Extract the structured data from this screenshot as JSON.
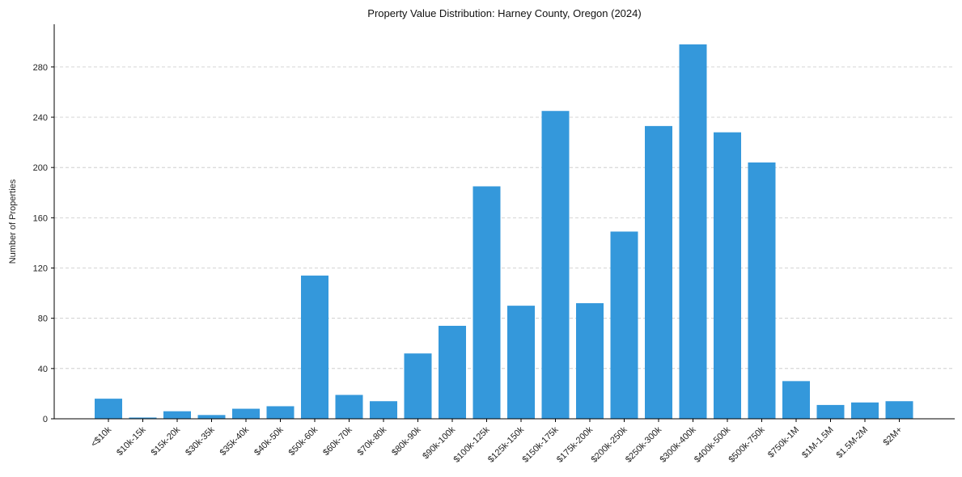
{
  "chart_data": {
    "type": "bar",
    "title": "Property Value Distribution: Harney County, Oregon (2024)",
    "xlabel": "",
    "ylabel": "Number of Properties",
    "categories": [
      "<$10k",
      "$10k-15k",
      "$15k-20k",
      "$30k-35k",
      "$35k-40k",
      "$40k-50k",
      "$50k-60k",
      "$60k-70k",
      "$70k-80k",
      "$80k-90k",
      "$90k-100k",
      "$100k-125k",
      "$125k-150k",
      "$150k-175k",
      "$175k-200k",
      "$200k-250k",
      "$250k-300k",
      "$300k-400k",
      "$400k-500k",
      "$500k-750k",
      "$750k-1M",
      "$1M-1.5M",
      "$1.5M-2M",
      "$2M+"
    ],
    "values": [
      16,
      1,
      6,
      3,
      8,
      10,
      114,
      19,
      14,
      52,
      74,
      185,
      90,
      245,
      92,
      149,
      233,
      298,
      228,
      204,
      30,
      11,
      13,
      14
    ],
    "ylim": [
      0,
      314
    ],
    "yticks": [
      0,
      40,
      80,
      120,
      160,
      200,
      240,
      280
    ],
    "grid": "y-dashed",
    "bar_color": "#3498db"
  }
}
